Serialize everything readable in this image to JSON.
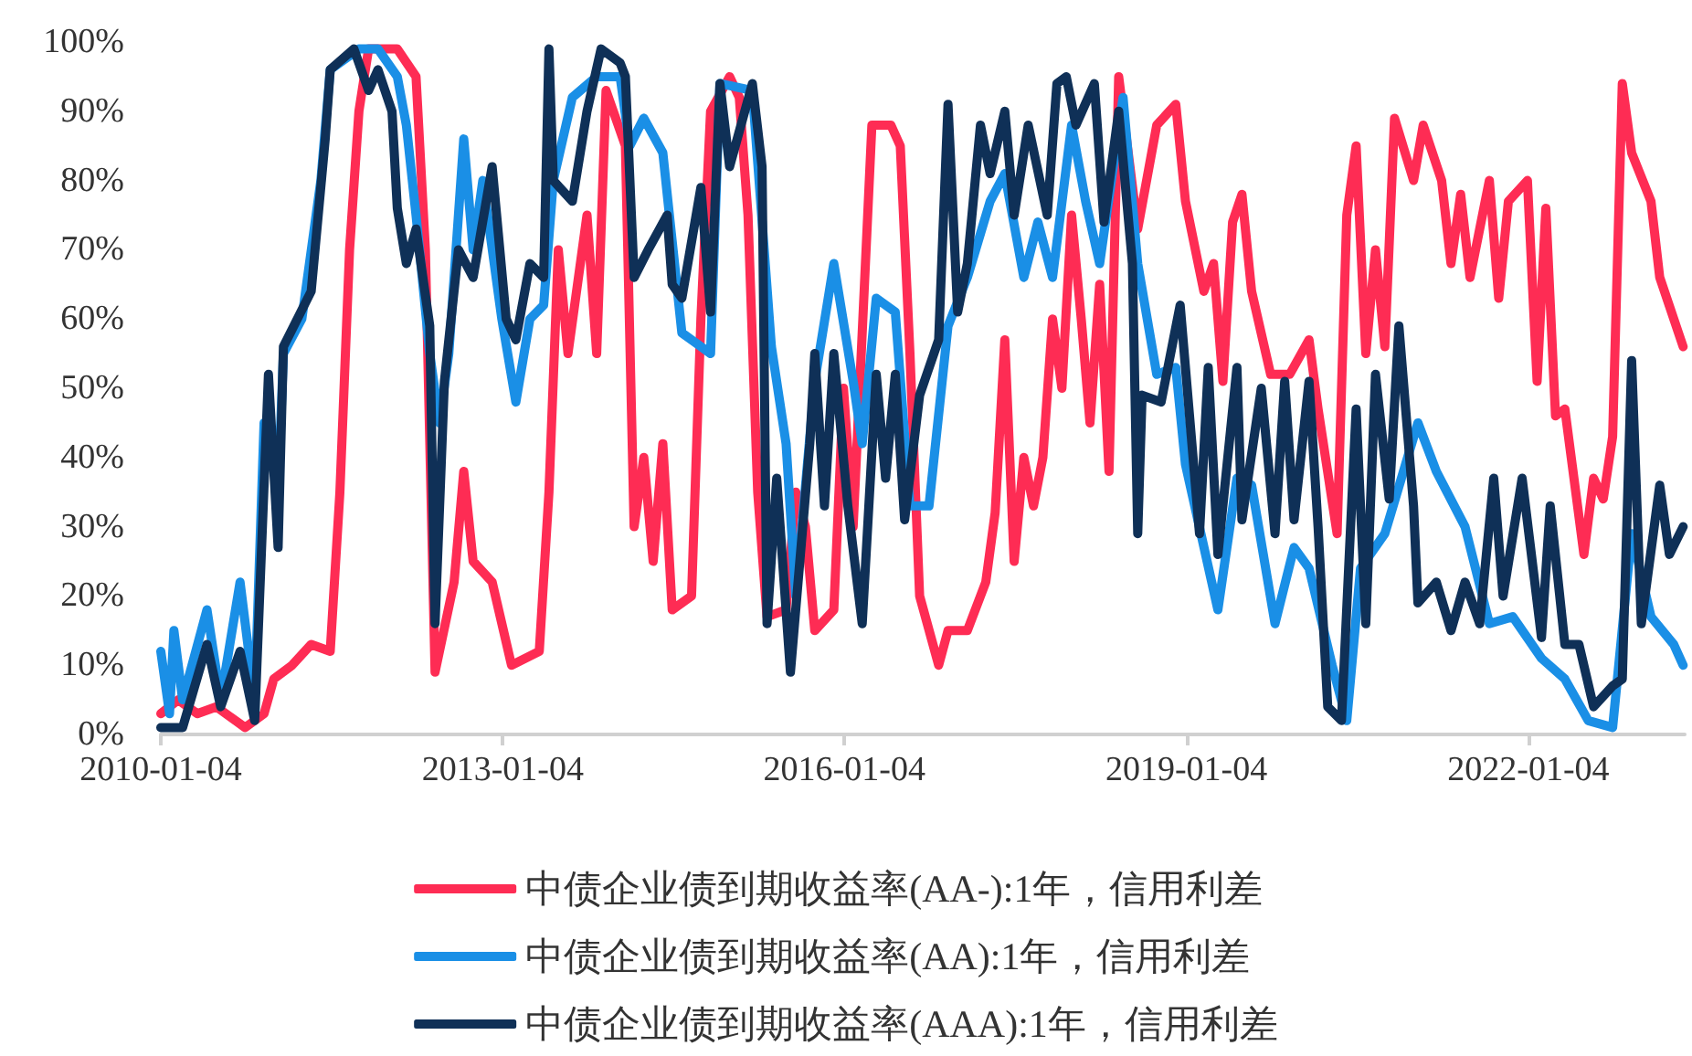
{
  "chart_data": {
    "type": "line",
    "xlim": [
      "2010-01-04",
      "2023-05-20"
    ],
    "xticks": [
      "2010-01-04",
      "2013-01-04",
      "2016-01-04",
      "2019-01-04",
      "2022-01-04"
    ],
    "ylim": [
      0,
      100
    ],
    "yticks": [
      {
        "value": 0,
        "label": "0%"
      },
      {
        "value": 10,
        "label": "10%"
      },
      {
        "value": 20,
        "label": "20%"
      },
      {
        "value": 30,
        "label": "30%"
      },
      {
        "value": 40,
        "label": "40%"
      },
      {
        "value": 50,
        "label": "50%"
      },
      {
        "value": 60,
        "label": "60%"
      },
      {
        "value": 70,
        "label": "70%"
      },
      {
        "value": 80,
        "label": "80%"
      },
      {
        "value": 90,
        "label": "90%"
      },
      {
        "value": 100,
        "label": "100%"
      }
    ],
    "grid": false,
    "legend": "bottom",
    "marker": "none",
    "line_style": "solid",
    "series": [
      {
        "name": "中债企业债到期收益率(AA-):1年，信用利差",
        "color": "#fe2c54",
        "x": [
          "2010-01-04",
          "2010-03-01",
          "2010-05-01",
          "2010-07-01",
          "2010-10-01",
          "2010-12-01",
          "2011-01-01",
          "2011-03-01",
          "2011-05-01",
          "2011-07-01",
          "2011-08-01",
          "2011-09-01",
          "2011-10-01",
          "2011-11-01",
          "2012-02-01",
          "2012-04-01",
          "2012-05-01",
          "2012-06-01",
          "2012-08-01",
          "2012-09-01",
          "2012-10-01",
          "2012-12-01",
          "2013-02-01",
          "2013-05-01",
          "2013-06-01",
          "2013-07-01",
          "2013-08-01",
          "2013-10-01",
          "2013-11-01",
          "2013-12-01",
          "2014-02-01",
          "2014-03-01",
          "2014-04-01",
          "2014-05-01",
          "2014-06-01",
          "2014-07-01",
          "2014-09-01",
          "2014-10-01",
          "2014-11-01",
          "2015-01-01",
          "2015-02-01",
          "2015-03-01",
          "2015-04-01",
          "2015-05-01",
          "2015-07-01",
          "2015-08-01",
          "2015-09-01",
          "2015-10-01",
          "2015-12-01",
          "2016-01-01",
          "2016-02-01",
          "2016-04-01",
          "2016-06-01",
          "2016-07-01",
          "2016-08-01",
          "2016-09-01",
          "2016-11-01",
          "2016-12-01",
          "2017-02-01",
          "2017-04-01",
          "2017-05-01",
          "2017-06-01",
          "2017-07-01",
          "2017-08-01",
          "2017-09-01",
          "2017-10-01",
          "2017-11-01",
          "2017-12-01",
          "2018-01-01",
          "2018-02-01",
          "2018-03-01",
          "2018-04-01",
          "2018-05-01",
          "2018-06-01",
          "2018-08-01",
          "2018-10-01",
          "2018-12-01",
          "2019-01-01",
          "2019-03-01",
          "2019-04-01",
          "2019-05-01",
          "2019-06-01",
          "2019-07-01",
          "2019-08-01",
          "2019-10-01",
          "2019-12-01",
          "2020-02-01",
          "2020-03-01",
          "2020-05-01",
          "2020-06-01",
          "2020-07-01",
          "2020-08-01",
          "2020-09-01",
          "2020-10-01",
          "2020-11-01",
          "2021-01-01",
          "2021-02-01",
          "2021-04-01",
          "2021-05-01",
          "2021-06-01",
          "2021-07-01",
          "2021-09-01",
          "2021-10-01",
          "2021-11-01",
          "2022-01-01",
          "2022-02-01",
          "2022-03-01",
          "2022-04-01",
          "2022-05-01",
          "2022-07-01",
          "2022-08-01",
          "2022-09-01",
          "2022-10-01",
          "2022-11-01",
          "2022-12-01",
          "2023-02-01",
          "2023-03-01",
          "2023-05-15"
        ],
        "values": [
          3,
          5,
          3,
          4,
          1,
          3,
          8,
          10,
          13,
          12,
          35,
          70,
          90,
          99,
          99,
          95,
          70,
          9,
          22,
          38,
          25,
          22,
          10,
          12,
          35,
          70,
          55,
          75,
          55,
          93,
          85,
          30,
          40,
          25,
          42,
          18,
          20,
          60,
          90,
          95,
          92,
          75,
          35,
          17,
          18,
          35,
          30,
          15,
          18,
          50,
          30,
          88,
          88,
          85,
          55,
          20,
          10,
          15,
          15,
          22,
          32,
          57,
          25,
          40,
          33,
          40,
          60,
          50,
          75,
          60,
          45,
          65,
          38,
          95,
          73,
          88,
          91,
          77,
          64,
          68,
          51,
          74,
          78,
          64,
          52,
          52,
          57,
          47,
          29,
          75,
          85,
          55,
          70,
          56,
          89,
          80,
          88,
          80,
          68,
          78,
          66,
          80,
          63,
          77,
          80,
          51,
          76,
          46,
          47,
          26,
          37,
          34,
          43,
          94,
          84,
          77,
          66,
          56
        ]
      },
      {
        "name": "中债企业债到期收益率(AA):1年，信用利差",
        "color": "#1a8fe6",
        "x": [
          "2010-01-04",
          "2010-02-01",
          "2010-02-15",
          "2010-03-15",
          "2010-06-01",
          "2010-07-15",
          "2010-09-15",
          "2010-11-01",
          "2010-12-01",
          "2011-01-15",
          "2011-02-01",
          "2011-04-01",
          "2011-06-01",
          "2011-07-01",
          "2011-10-01",
          "2011-12-01",
          "2012-02-01",
          "2012-03-01",
          "2012-04-01",
          "2012-05-15",
          "2012-06-15",
          "2012-07-15",
          "2012-09-01",
          "2012-10-01",
          "2012-11-01",
          "2013-01-01",
          "2013-02-15",
          "2013-04-01",
          "2013-05-15",
          "2013-06-15",
          "2013-08-15",
          "2013-11-01",
          "2014-01-15",
          "2014-02-15",
          "2014-04-01",
          "2014-06-01",
          "2014-08-01",
          "2014-11-01",
          "2014-12-01",
          "2015-03-15",
          "2015-05-15",
          "2015-07-01",
          "2015-08-01",
          "2015-10-01",
          "2015-12-01",
          "2016-02-01",
          "2016-03-01",
          "2016-04-15",
          "2016-06-15",
          "2016-08-01",
          "2016-10-01",
          "2016-12-01",
          "2017-02-01",
          "2017-04-15",
          "2017-06-01",
          "2017-08-01",
          "2017-09-15",
          "2017-11-01",
          "2018-01-01",
          "2018-02-15",
          "2018-04-01",
          "2018-06-15",
          "2018-08-01",
          "2018-10-01",
          "2018-12-01",
          "2019-01-01",
          "2019-04-15",
          "2019-06-15",
          "2019-08-01",
          "2019-10-15",
          "2019-12-15",
          "2020-02-01",
          "2020-04-15",
          "2020-06-01",
          "2020-07-15",
          "2020-10-01",
          "2021-01-15",
          "2021-03-15",
          "2021-06-15",
          "2021-09-01",
          "2021-11-15",
          "2022-02-15",
          "2022-05-01",
          "2022-07-15",
          "2022-10-01",
          "2022-12-01",
          "2023-02-01",
          "2023-04-15",
          "2023-05-15"
        ],
        "values": [
          12,
          3,
          15,
          5,
          18,
          5,
          22,
          5,
          45,
          35,
          55,
          60,
          80,
          96,
          99,
          99,
          95,
          88,
          75,
          55,
          45,
          55,
          86,
          70,
          80,
          60,
          48,
          60,
          62,
          80,
          92,
          95,
          95,
          85,
          89,
          84,
          58,
          55,
          94,
          93,
          56,
          42,
          20,
          51,
          68,
          51,
          42,
          63,
          61,
          33,
          33,
          59,
          66,
          77,
          81,
          66,
          74,
          66,
          88,
          77,
          68,
          92,
          68,
          52,
          53,
          39,
          18,
          37,
          36,
          16,
          27,
          24,
          10,
          2,
          24,
          29,
          45,
          38,
          30,
          16,
          17,
          11,
          8,
          2,
          1,
          29,
          17,
          13,
          10
        ]
      },
      {
        "name": "中债企业债到期收益率(AAA):1年，信用利差",
        "color": "#0f3057",
        "x": [
          "2010-01-04",
          "2010-03-15",
          "2010-06-01",
          "2010-07-15",
          "2010-09-15",
          "2010-11-01",
          "2010-12-15",
          "2011-01-15",
          "2011-02-01",
          "2011-05-01",
          "2011-06-15",
          "2011-07-01",
          "2011-09-15",
          "2011-11-01",
          "2011-12-01",
          "2012-01-15",
          "2012-02-01",
          "2012-03-01",
          "2012-04-01",
          "2012-05-15",
          "2012-06-01",
          "2012-07-01",
          "2012-08-15",
          "2012-10-01",
          "2012-12-01",
          "2013-01-15",
          "2013-02-15",
          "2013-04-01",
          "2013-05-15",
          "2013-06-01",
          "2013-06-15",
          "2013-08-15",
          "2013-10-01",
          "2013-11-15",
          "2014-01-15",
          "2014-02-01",
          "2014-03-01",
          "2014-04-15",
          "2014-06-15",
          "2014-07-01",
          "2014-08-01",
          "2014-10-01",
          "2014-11-01",
          "2014-12-01",
          "2015-01-01",
          "2015-03-15",
          "2015-04-15",
          "2015-05-01",
          "2015-06-01",
          "2015-07-15",
          "2015-09-15",
          "2015-10-01",
          "2015-11-01",
          "2015-12-01",
          "2016-01-15",
          "2016-03-01",
          "2016-04-15",
          "2016-05-15",
          "2016-06-15",
          "2016-07-15",
          "2016-09-01",
          "2016-11-01",
          "2016-12-01",
          "2017-01-01",
          "2017-02-01",
          "2017-03-15",
          "2017-04-15",
          "2017-06-01",
          "2017-07-01",
          "2017-08-15",
          "2017-10-15",
          "2017-11-15",
          "2017-12-15",
          "2018-01-15",
          "2018-03-15",
          "2018-04-15",
          "2018-06-01",
          "2018-07-15",
          "2018-08-01",
          "2018-08-15",
          "2018-10-15",
          "2018-12-15",
          "2019-02-15",
          "2019-03-15",
          "2019-04-15",
          "2019-06-15",
          "2019-07-01",
          "2019-09-01",
          "2019-10-15",
          "2019-11-15",
          "2019-12-15",
          "2020-02-01",
          "2020-03-01",
          "2020-04-01",
          "2020-05-15",
          "2020-07-01",
          "2020-08-01",
          "2020-09-01",
          "2020-10-15",
          "2020-11-15",
          "2021-01-01",
          "2021-01-15",
          "2021-03-15",
          "2021-05-01",
          "2021-06-15",
          "2021-08-01",
          "2021-09-15",
          "2021-10-15",
          "2021-12-15",
          "2022-02-15",
          "2022-03-15",
          "2022-05-01",
          "2022-06-15",
          "2022-08-01",
          "2022-10-01",
          "2022-11-01",
          "2022-12-01",
          "2023-01-01",
          "2023-03-01",
          "2023-04-01",
          "2023-05-15"
        ],
        "values": [
          1,
          1,
          13,
          4,
          12,
          2,
          52,
          27,
          56,
          64,
          86,
          96,
          99,
          93,
          96,
          90,
          76,
          68,
          73,
          59,
          16,
          51,
          70,
          66,
          82,
          60,
          57,
          68,
          66,
          99,
          80,
          77,
          90,
          99,
          97,
          95,
          66,
          70,
          75,
          65,
          63,
          79,
          61,
          94,
          82,
          94,
          82,
          16,
          37,
          9,
          42,
          55,
          33,
          55,
          33,
          16,
          52,
          37,
          52,
          31,
          49,
          57,
          91,
          61,
          68,
          88,
          81,
          90,
          75,
          88,
          75,
          94,
          95,
          88,
          94,
          74,
          90,
          68,
          29,
          49,
          48,
          62,
          29,
          53,
          26,
          53,
          31,
          50,
          29,
          51,
          31,
          51,
          30,
          4,
          2,
          47,
          16,
          52,
          34,
          59,
          33,
          19,
          22,
          15,
          22,
          16,
          37,
          20,
          37,
          14,
          33,
          13,
          13,
          4,
          7,
          8,
          54,
          16,
          36,
          26,
          30
        ]
      }
    ]
  }
}
